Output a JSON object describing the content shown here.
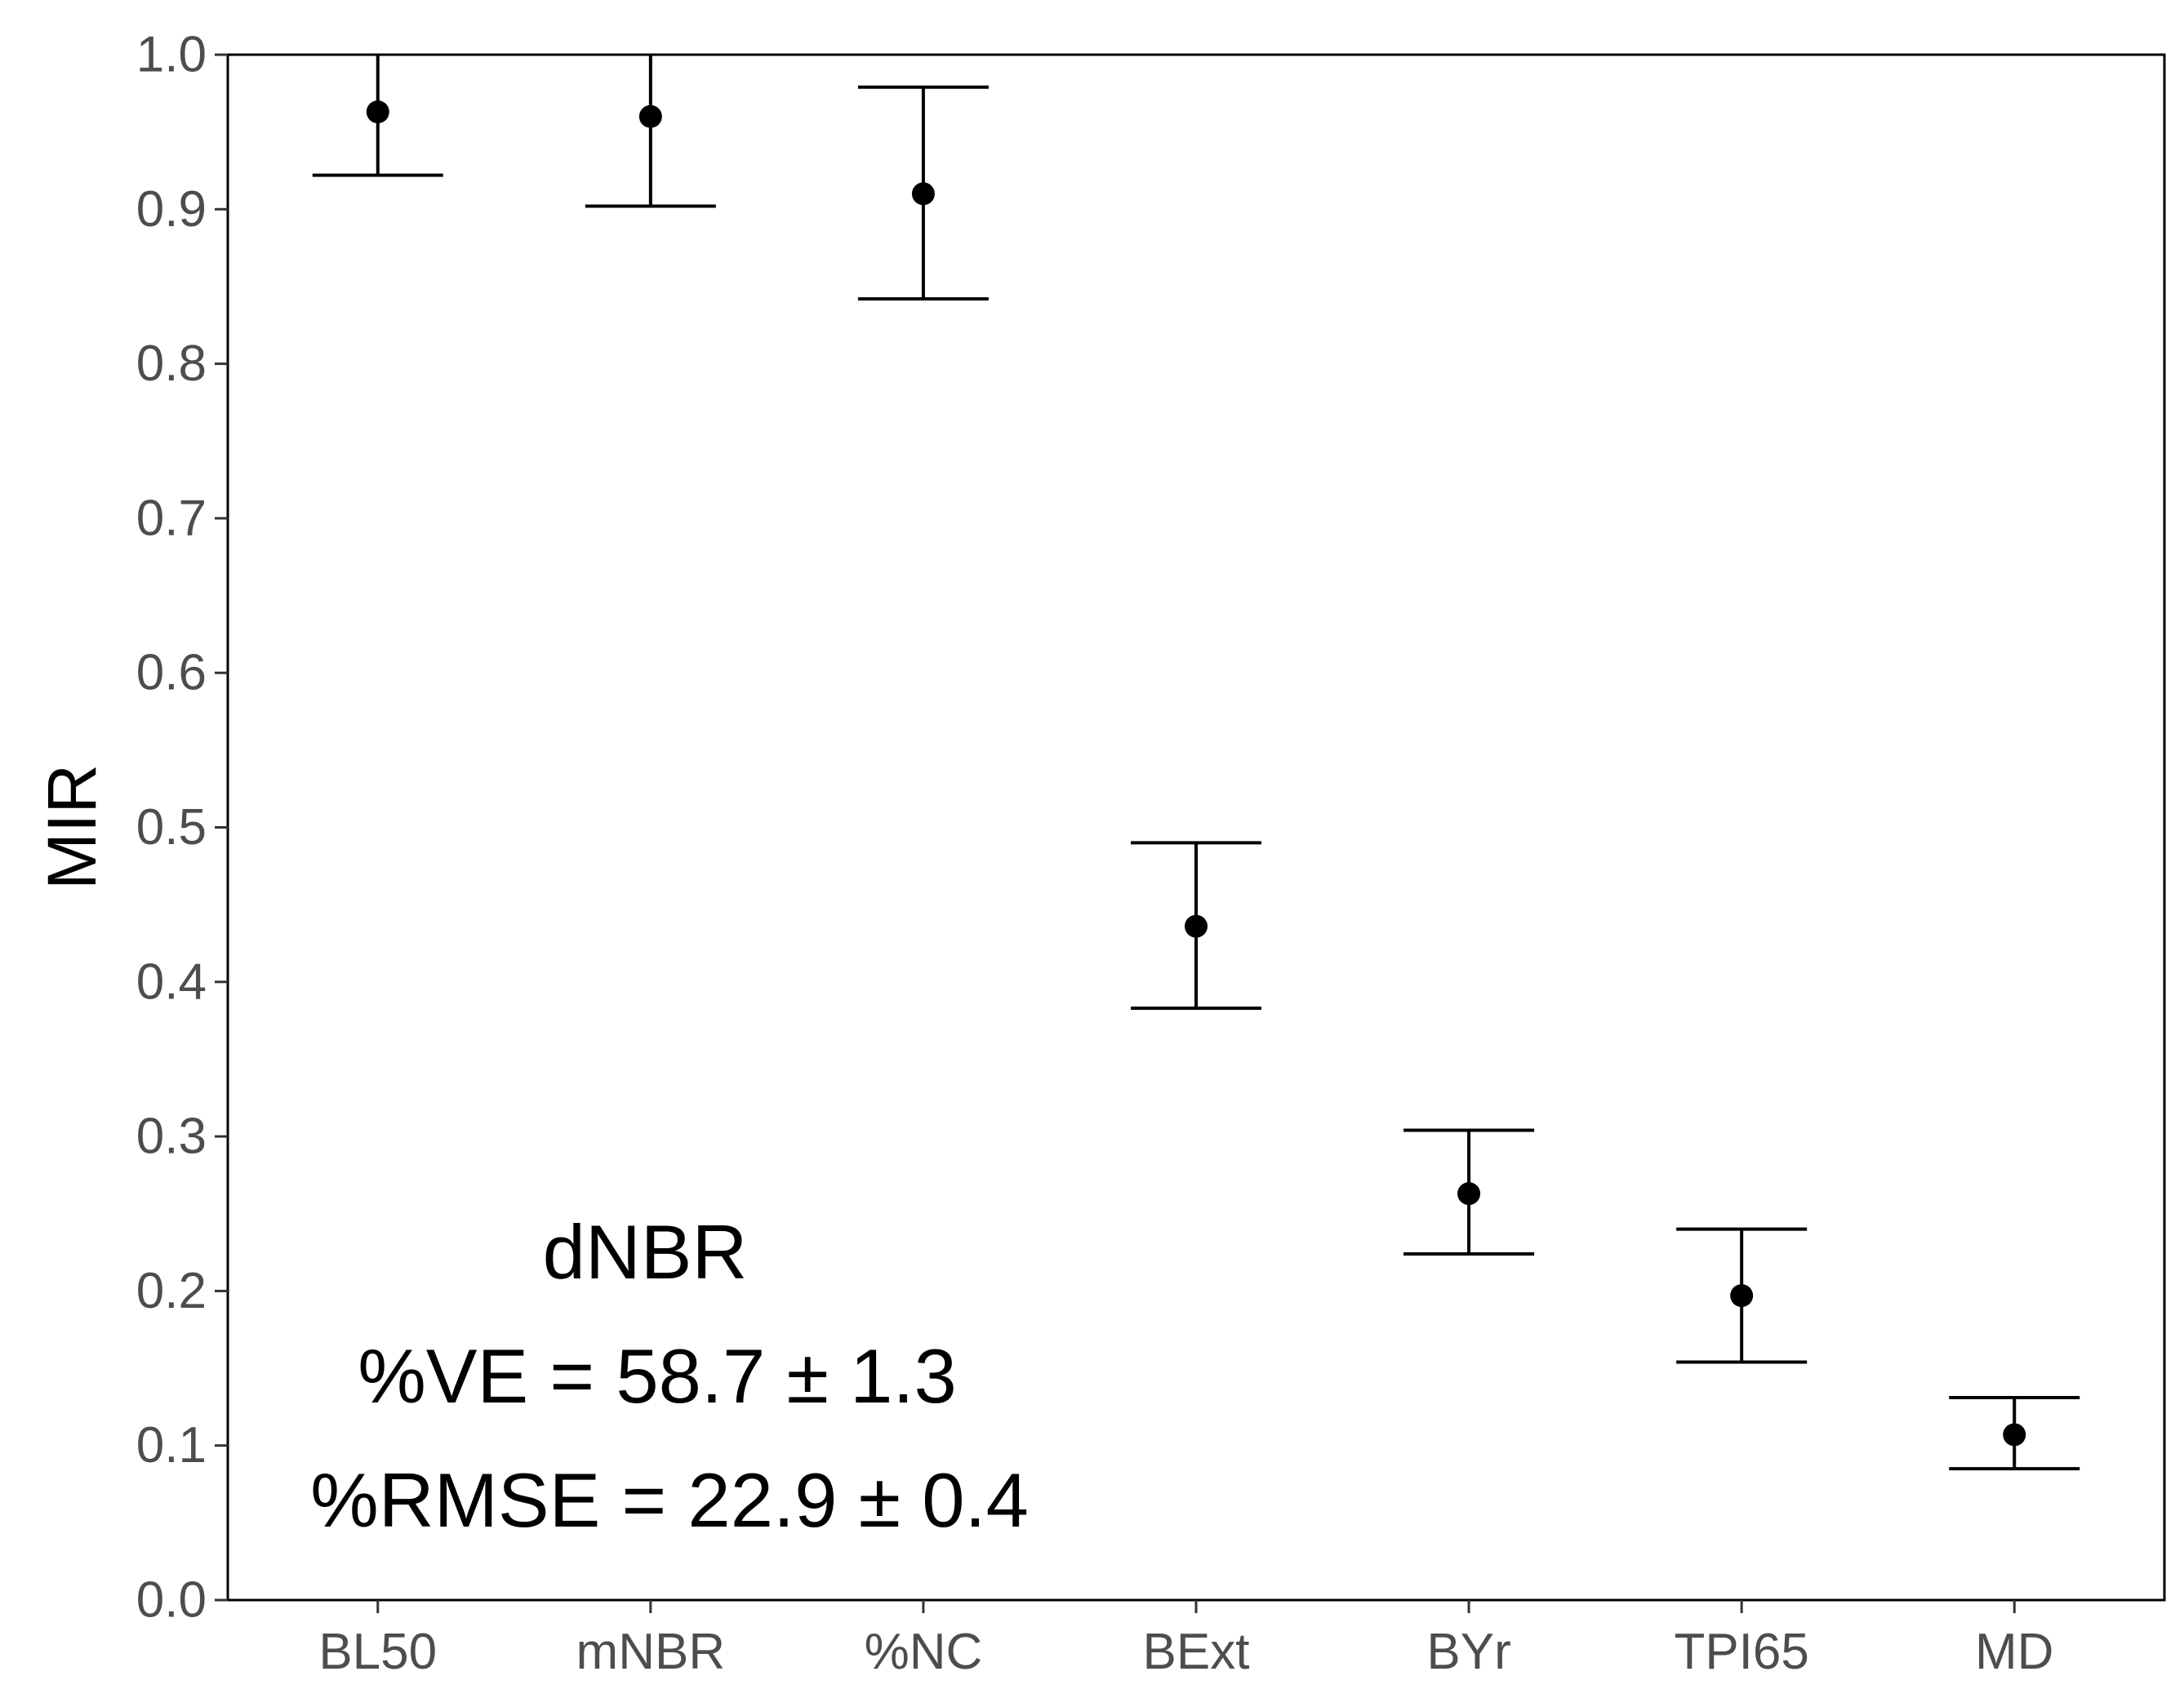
{
  "chart_data": {
    "type": "scatter",
    "subtype": "point-with-error-bars",
    "categories": [
      "BL50",
      "mNBR",
      "%NC",
      "BExt",
      "BYr",
      "TPI65",
      "MD"
    ],
    "series": [
      {
        "values": [
          0.963,
          0.96,
          0.91,
          0.436,
          0.263,
          0.197,
          0.107
        ],
        "lower": [
          0.922,
          0.902,
          0.842,
          0.383,
          0.224,
          0.154,
          0.085
        ],
        "upper": [
          1.004,
          1.018,
          0.979,
          0.49,
          0.304,
          0.24,
          0.131
        ]
      }
    ],
    "ylabel": "MIR",
    "xlabel": "",
    "ylim": [
      0.0,
      1.0
    ],
    "yticks": [
      "0.0",
      "0.1",
      "0.2",
      "0.3",
      "0.4",
      "0.5",
      "0.6",
      "0.7",
      "0.8",
      "0.9",
      "1.0"
    ],
    "grid": false,
    "legend": "none",
    "annotations": [
      "dNBR",
      "%VE = 58.7 ± 1.3",
      "%RMSE = 22.9 ± 0.4"
    ],
    "colors": {
      "marker": "#000000",
      "tick_text": "#4d4d4d",
      "axis_line": "#000000"
    }
  }
}
